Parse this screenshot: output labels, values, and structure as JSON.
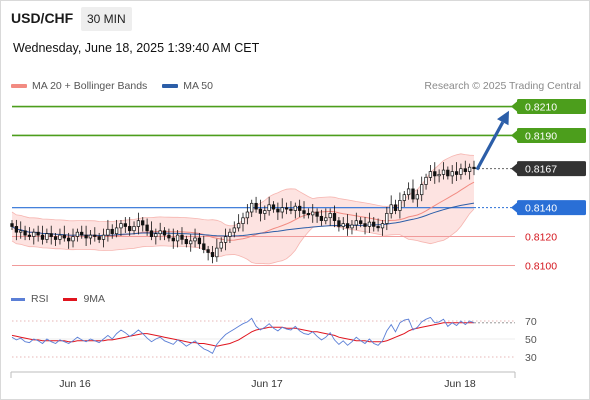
{
  "header": {
    "symbol": "USD/CHF",
    "timeframe": "30 MIN",
    "timestamp": "Wednesday, June 18, 2025 1:39:40 AM CET"
  },
  "legend": {
    "ma20_label": "MA 20 + Bollinger Bands",
    "ma50_label": "MA 50",
    "ma20_color": "#f28b82",
    "ma50_color": "#2c5ea8"
  },
  "copyright": "Research © 2025 Trading Central",
  "rsi_legend": {
    "rsi_label": "RSI",
    "ma_label": "9MA",
    "rsi_color": "#5b7fd6",
    "ma_color": "#e0141e"
  },
  "chart_data": [
    {
      "type": "candlestick",
      "y_range": [
        0.8092,
        0.8218
      ],
      "x_labels": [
        "Jun 16",
        "Jun 17",
        "Jun 18"
      ],
      "levels": [
        {
          "value": 0.821,
          "label": "0.8210",
          "kind": "resistance",
          "color": "#4c9e1c"
        },
        {
          "value": 0.819,
          "label": "0.8190",
          "kind": "resistance",
          "color": "#4c9e1c"
        },
        {
          "value": 0.8167,
          "label": "0.8167",
          "kind": "last-price",
          "color": "#333333"
        },
        {
          "value": 0.814,
          "label": "0.8140",
          "kind": "pivot",
          "color": "#2a6fd6"
        },
        {
          "value": 0.812,
          "label": "0.8120",
          "kind": "support",
          "color": "#e0141e"
        },
        {
          "value": 0.81,
          "label": "0.8100",
          "kind": "support",
          "color": "#e0141e"
        }
      ],
      "forecast_target": 0.821,
      "close": [
        0.8127,
        0.8123,
        0.8124,
        0.8121,
        0.812,
        0.8123,
        0.8121,
        0.8118,
        0.8122,
        0.812,
        0.8118,
        0.8121,
        0.8119,
        0.8117,
        0.812,
        0.8123,
        0.8121,
        0.8119,
        0.8121,
        0.812,
        0.8118,
        0.8121,
        0.8125,
        0.8122,
        0.8126,
        0.8129,
        0.8127,
        0.8124,
        0.8127,
        0.8131,
        0.8128,
        0.8124,
        0.812,
        0.8122,
        0.8124,
        0.8121,
        0.8119,
        0.8117,
        0.8121,
        0.8118,
        0.8115,
        0.8117,
        0.8119,
        0.8115,
        0.8111,
        0.8109,
        0.8106,
        0.8112,
        0.8116,
        0.812,
        0.8123,
        0.8126,
        0.8129,
        0.8133,
        0.8137,
        0.8143,
        0.8139,
        0.8136,
        0.8138,
        0.8142,
        0.8139,
        0.8137,
        0.814,
        0.8139,
        0.8138,
        0.8141,
        0.8138,
        0.8136,
        0.8135,
        0.8137,
        0.8134,
        0.8131,
        0.8133,
        0.8136,
        0.8131,
        0.8127,
        0.8129,
        0.8126,
        0.8128,
        0.8131,
        0.8129,
        0.8127,
        0.813,
        0.8127,
        0.8126,
        0.8129,
        0.8136,
        0.8142,
        0.8138,
        0.8145,
        0.8149,
        0.8153,
        0.8146,
        0.8149,
        0.8156,
        0.8161,
        0.8165,
        0.8162,
        0.8163,
        0.8166,
        0.8162,
        0.8165,
        0.8163,
        0.8167,
        0.8165,
        0.8168,
        0.8167
      ]
    },
    {
      "type": "line",
      "name": "RSI",
      "y_range": [
        20,
        80
      ],
      "y_ticks": [
        70,
        50,
        30
      ],
      "series": [
        {
          "name": "RSI",
          "values": [
            52,
            49,
            51,
            47,
            46,
            50,
            48,
            45,
            50,
            47,
            45,
            49,
            47,
            45,
            48,
            52,
            49,
            47,
            50,
            48,
            46,
            50,
            54,
            50,
            56,
            60,
            57,
            53,
            56,
            60,
            56,
            51,
            47,
            50,
            52,
            48,
            46,
            44,
            49,
            46,
            42,
            45,
            48,
            43,
            39,
            37,
            34,
            44,
            50,
            55,
            58,
            61,
            64,
            67,
            69,
            73,
            64,
            60,
            63,
            67,
            62,
            59,
            63,
            61,
            60,
            64,
            59,
            56,
            55,
            58,
            53,
            49,
            52,
            57,
            49,
            44,
            48,
            43,
            47,
            52,
            48,
            45,
            50,
            45,
            43,
            48,
            59,
            66,
            58,
            68,
            71,
            72,
            60,
            63,
            69,
            72,
            74,
            68,
            69,
            72,
            64,
            68,
            65,
            70,
            66,
            70,
            68
          ]
        },
        {
          "name": "9MA",
          "values": [
            54,
            53,
            52,
            51,
            50,
            49,
            49,
            48,
            48,
            48,
            48,
            48,
            48,
            47,
            47,
            48,
            48,
            48,
            48,
            48,
            48,
            48,
            49,
            49,
            50,
            51,
            52,
            53,
            54,
            55,
            56,
            56,
            55,
            54,
            53,
            52,
            51,
            50,
            49,
            48,
            47,
            46,
            46,
            45,
            45,
            44,
            43,
            42,
            43,
            44,
            45,
            47,
            49,
            52,
            55,
            58,
            60,
            61,
            62,
            63,
            63,
            63,
            63,
            62,
            62,
            62,
            61,
            60,
            59,
            58,
            58,
            57,
            56,
            55,
            54,
            52,
            51,
            50,
            49,
            48,
            48,
            48,
            47,
            47,
            47,
            47,
            48,
            50,
            52,
            54,
            56,
            59,
            61,
            62,
            63,
            64,
            65,
            66,
            67,
            68,
            68,
            68,
            68,
            68,
            68,
            68,
            68
          ]
        }
      ]
    }
  ]
}
